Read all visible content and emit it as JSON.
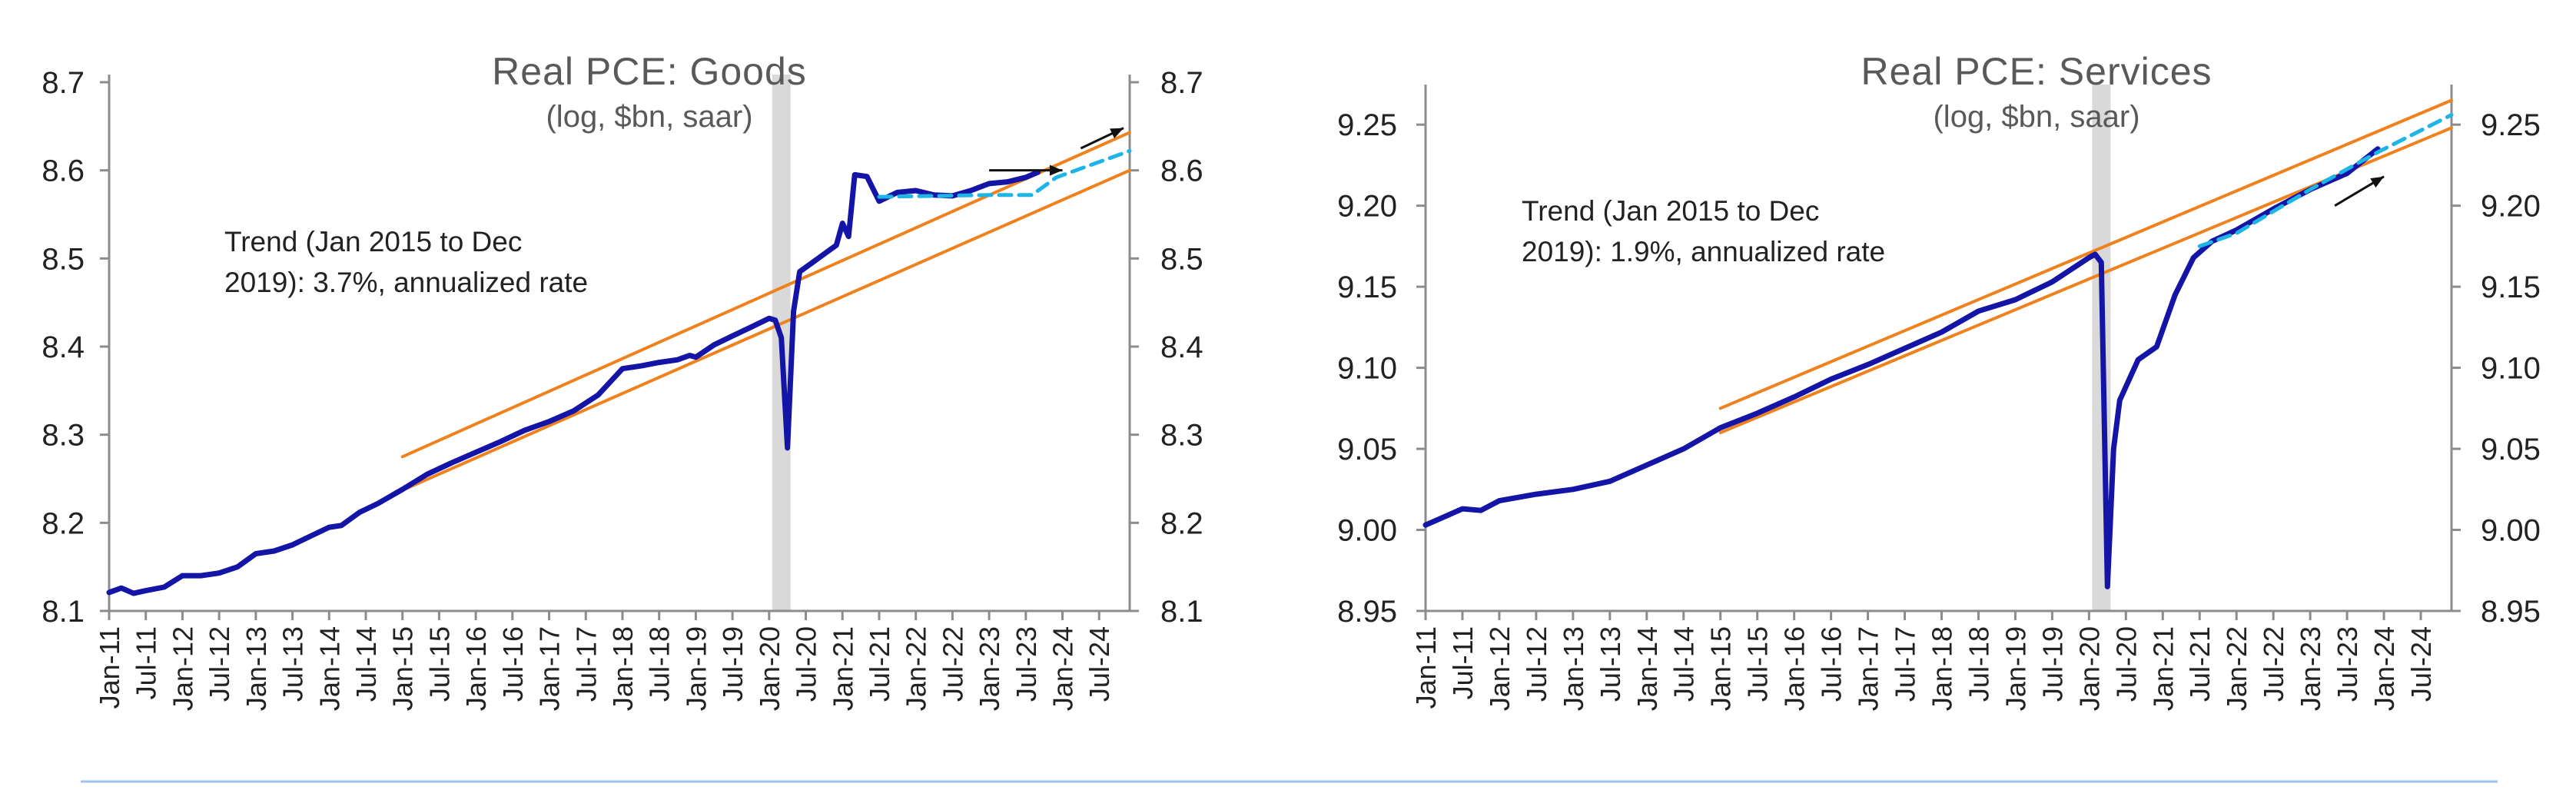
{
  "colors": {
    "actual": "#1414a6",
    "trend_band": "#f0821e",
    "projection": "#1eb4e6",
    "recession_shade": "#d9d9d9",
    "axis": "#8c8c8c",
    "text": "#222222",
    "title": "#595959",
    "separator": "#9dc3e6"
  },
  "x_tick_labels": [
    "Jan-11",
    "Jul-11",
    "Jan-12",
    "Jul-12",
    "Jan-13",
    "Jul-13",
    "Jan-14",
    "Jul-14",
    "Jan-15",
    "Jul-15",
    "Jan-16",
    "Jul-16",
    "Jan-17",
    "Jul-17",
    "Jan-18",
    "Jul-18",
    "Jan-19",
    "Jul-19",
    "Jan-20",
    "Jul-20",
    "Jan-21",
    "Jul-21",
    "Jan-22",
    "Jul-22",
    "Jan-23",
    "Jul-23",
    "Jan-24",
    "Jul-24"
  ],
  "chart_data": [
    {
      "type": "line",
      "title": "Real PCE: Goods",
      "subtitle": "(log, $bn, saar)",
      "annotation": [
        "Trend (Jan 2015 to Dec",
        "2019): 3.7%, annualized rate"
      ],
      "x_range": [
        "Jan-11",
        "Dec-24"
      ],
      "ylim": [
        8.1,
        8.7
      ],
      "y_ticks": [
        "8.1",
        "8.2",
        "8.3",
        "8.4",
        "8.5",
        "8.6",
        "8.7"
      ],
      "dual_y_axis": true,
      "shaded_period": [
        "Feb-20",
        "Apr-20"
      ],
      "series": [
        {
          "key": "actual",
          "points": [
            [
              "Jan-11",
              8.121
            ],
            [
              "Mar-11",
              8.126
            ],
            [
              "May-11",
              8.12
            ],
            [
              "Jul-11",
              8.123
            ],
            [
              "Oct-11",
              8.127
            ],
            [
              "Jan-12",
              8.14
            ],
            [
              "Apr-12",
              8.14
            ],
            [
              "Jul-12",
              8.143
            ],
            [
              "Oct-12",
              8.15
            ],
            [
              "Jan-13",
              8.165
            ],
            [
              "Apr-13",
              8.168
            ],
            [
              "Jul-13",
              8.175
            ],
            [
              "Oct-13",
              8.185
            ],
            [
              "Jan-14",
              8.195
            ],
            [
              "Mar-14",
              8.197
            ],
            [
              "Jun-14",
              8.212
            ],
            [
              "Sep-14",
              8.222
            ],
            [
              "Jan-15",
              8.238
            ],
            [
              "May-15",
              8.255
            ],
            [
              "Sep-15",
              8.268
            ],
            [
              "Jan-16",
              8.28
            ],
            [
              "May-16",
              8.292
            ],
            [
              "Sep-16",
              8.305
            ],
            [
              "Jan-17",
              8.315
            ],
            [
              "May-17",
              8.327
            ],
            [
              "Sep-17",
              8.345
            ],
            [
              "Jan-18",
              8.375
            ],
            [
              "Apr-18",
              8.378
            ],
            [
              "Jul-18",
              8.382
            ],
            [
              "Oct-18",
              8.385
            ],
            [
              "Dec-18",
              8.39
            ],
            [
              "Jan-19",
              8.388
            ],
            [
              "Apr-19",
              8.402
            ],
            [
              "Jul-19",
              8.412
            ],
            [
              "Oct-19",
              8.422
            ],
            [
              "Jan-20",
              8.432
            ],
            [
              "Feb-20",
              8.43
            ],
            [
              "Mar-20",
              8.41
            ],
            [
              "Apr-20",
              8.285
            ],
            [
              "May-20",
              8.44
            ],
            [
              "Jun-20",
              8.485
            ],
            [
              "Aug-20",
              8.495
            ],
            [
              "Oct-20",
              8.505
            ],
            [
              "Dec-20",
              8.515
            ],
            [
              "Jan-21",
              8.54
            ],
            [
              "Feb-21",
              8.525
            ],
            [
              "Mar-21",
              8.595
            ],
            [
              "May-21",
              8.593
            ],
            [
              "Jul-21",
              8.565
            ],
            [
              "Oct-21",
              8.575
            ],
            [
              "Jan-22",
              8.577
            ],
            [
              "Apr-22",
              8.572
            ],
            [
              "Jul-22",
              8.571
            ],
            [
              "Oct-22",
              8.577
            ],
            [
              "Jan-23",
              8.585
            ],
            [
              "Apr-23",
              8.587
            ],
            [
              "Jul-23",
              8.592
            ],
            [
              "Sep-23",
              8.598
            ]
          ]
        },
        {
          "key": "trend_upper",
          "points": [
            [
              "Jan-15",
              8.275
            ],
            [
              "Dec-24",
              8.643
            ]
          ]
        },
        {
          "key": "trend_lower",
          "points": [
            [
              "Jan-15",
              8.237
            ],
            [
              "Dec-24",
              8.6
            ]
          ]
        },
        {
          "key": "projection",
          "points": [
            [
              "Jul-21",
              8.57
            ],
            [
              "Jan-23",
              8.572
            ],
            [
              "Aug-23",
              8.572
            ],
            [
              "Dec-23",
              8.592
            ],
            [
              "Dec-24",
              8.622
            ]
          ]
        }
      ]
    },
    {
      "type": "line",
      "title": "Real PCE: Services",
      "subtitle": "(log, $bn, saar)",
      "annotation": [
        "Trend (Jan 2015 to Dec",
        "2019): 1.9%, annualized rate"
      ],
      "x_range": [
        "Jan-11",
        "Dec-24"
      ],
      "ylim": [
        8.95,
        9.27
      ],
      "y_ticks": [
        "8.95",
        "9.00",
        "9.05",
        "9.10",
        "9.15",
        "9.20",
        "9.25"
      ],
      "dual_y_axis": true,
      "shaded_period": [
        "Feb-20",
        "Apr-20"
      ],
      "series": [
        {
          "key": "actual",
          "points": [
            [
              "Jan-11",
              9.003
            ],
            [
              "Apr-11",
              9.008
            ],
            [
              "Jul-11",
              9.013
            ],
            [
              "Oct-11",
              9.012
            ],
            [
              "Jan-12",
              9.018
            ],
            [
              "Jul-12",
              9.022
            ],
            [
              "Jan-13",
              9.025
            ],
            [
              "Jul-13",
              9.03
            ],
            [
              "Jan-14",
              9.04
            ],
            [
              "Jul-14",
              9.05
            ],
            [
              "Jan-15",
              9.063
            ],
            [
              "Jul-15",
              9.072
            ],
            [
              "Jan-16",
              9.082
            ],
            [
              "Jul-16",
              9.093
            ],
            [
              "Jan-17",
              9.102
            ],
            [
              "Jul-17",
              9.112
            ],
            [
              "Jan-18",
              9.122
            ],
            [
              "Jul-18",
              9.135
            ],
            [
              "Jan-19",
              9.142
            ],
            [
              "Jul-19",
              9.153
            ],
            [
              "Jan-20",
              9.168
            ],
            [
              "Feb-20",
              9.17
            ],
            [
              "Mar-20",
              9.165
            ],
            [
              "Apr-20",
              8.965
            ],
            [
              "May-20",
              9.05
            ],
            [
              "Jun-20",
              9.08
            ],
            [
              "Sep-20",
              9.105
            ],
            [
              "Dec-20",
              9.113
            ],
            [
              "Mar-21",
              9.145
            ],
            [
              "Jun-21",
              9.168
            ],
            [
              "Sep-21",
              9.178
            ],
            [
              "Jan-22",
              9.185
            ],
            [
              "Jul-22",
              9.198
            ],
            [
              "Jan-23",
              9.21
            ],
            [
              "Jul-23",
              9.22
            ],
            [
              "Dec-23",
              9.235
            ]
          ]
        },
        {
          "key": "trend_upper",
          "points": [
            [
              "Jan-15",
              9.075
            ],
            [
              "Dec-24",
              9.265
            ]
          ]
        },
        {
          "key": "trend_lower",
          "points": [
            [
              "Jan-15",
              9.06
            ],
            [
              "Dec-24",
              9.248
            ]
          ]
        },
        {
          "key": "projection",
          "points": [
            [
              "Jul-21",
              9.175
            ],
            [
              "Jan-22",
              9.183
            ],
            [
              "Jan-23",
              9.21
            ],
            [
              "Dec-23",
              9.233
            ],
            [
              "Dec-24",
              9.256
            ]
          ]
        }
      ]
    }
  ],
  "arrows": [
    {
      "chart": 0,
      "from": [
        "Jan-23",
        8.6
      ],
      "to": [
        "Jan-24",
        8.6
      ]
    },
    {
      "chart": 0,
      "from": [
        "Apr-24",
        8.625
      ],
      "to": [
        "Nov-24",
        8.648
      ]
    },
    {
      "chart": 1,
      "from": [
        "May-23",
        9.2
      ],
      "to": [
        "Jan-24",
        9.218
      ]
    }
  ]
}
